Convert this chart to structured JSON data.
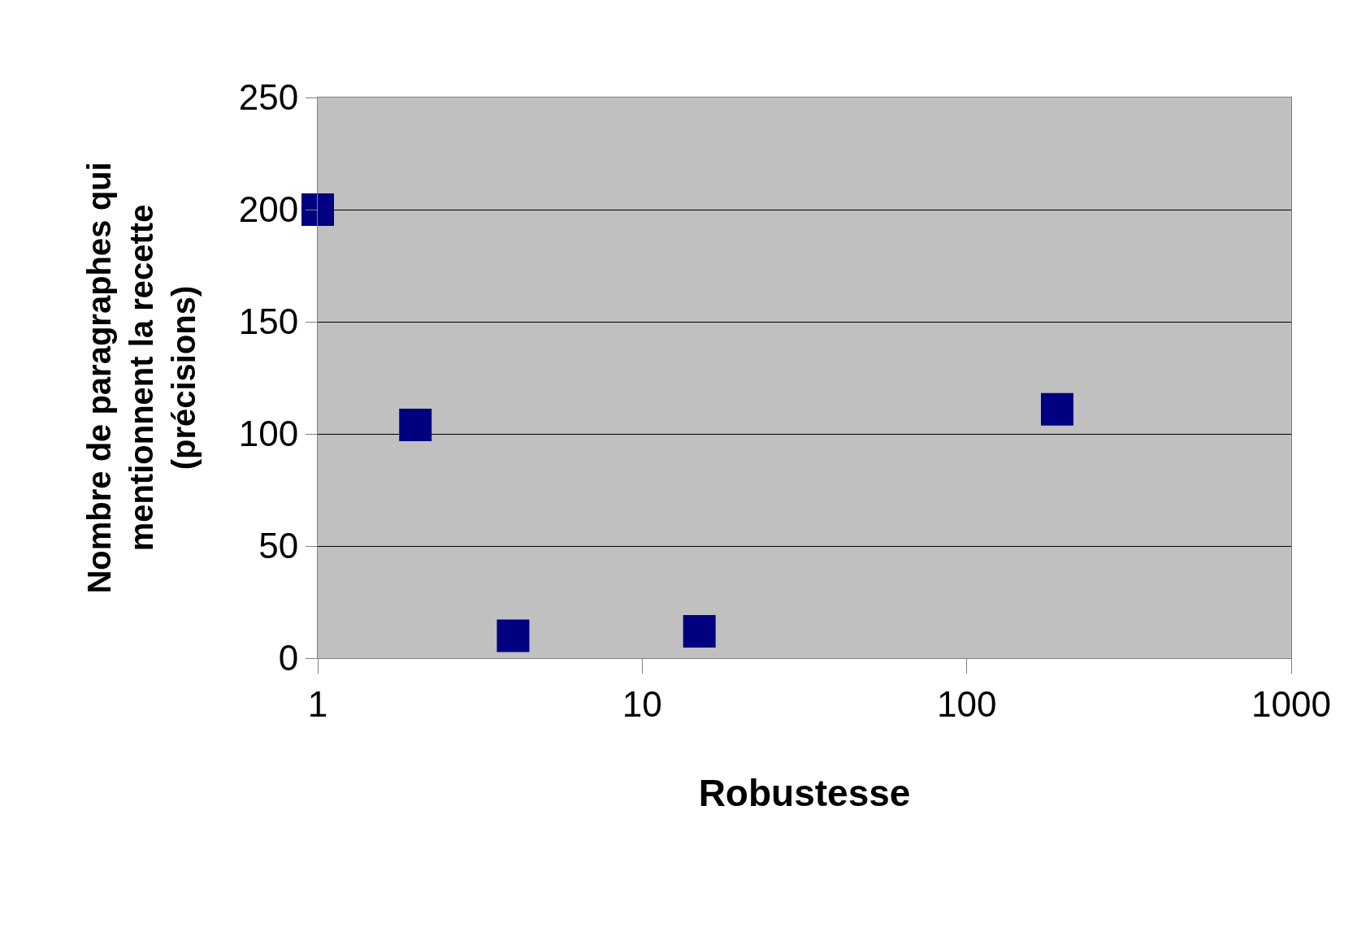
{
  "chart_data": {
    "type": "scatter",
    "xlabel": "Robustesse",
    "ylabel": "Nombre de paragraphes qui\nmentionnent la recette\n(précisions)",
    "x": [
      1,
      2,
      4,
      15,
      190
    ],
    "series": [
      {
        "color": "#000080",
        "values": [
          200,
          104,
          10,
          12,
          111
        ]
      }
    ],
    "log": "x",
    "xlim": [
      1,
      1000
    ],
    "xticks": [
      1,
      10,
      100,
      1000
    ],
    "ylim": [
      0,
      250
    ],
    "yticks": [
      0,
      50,
      100,
      150,
      200,
      250
    ],
    "grid": "y",
    "legend": false,
    "marker": "square"
  }
}
